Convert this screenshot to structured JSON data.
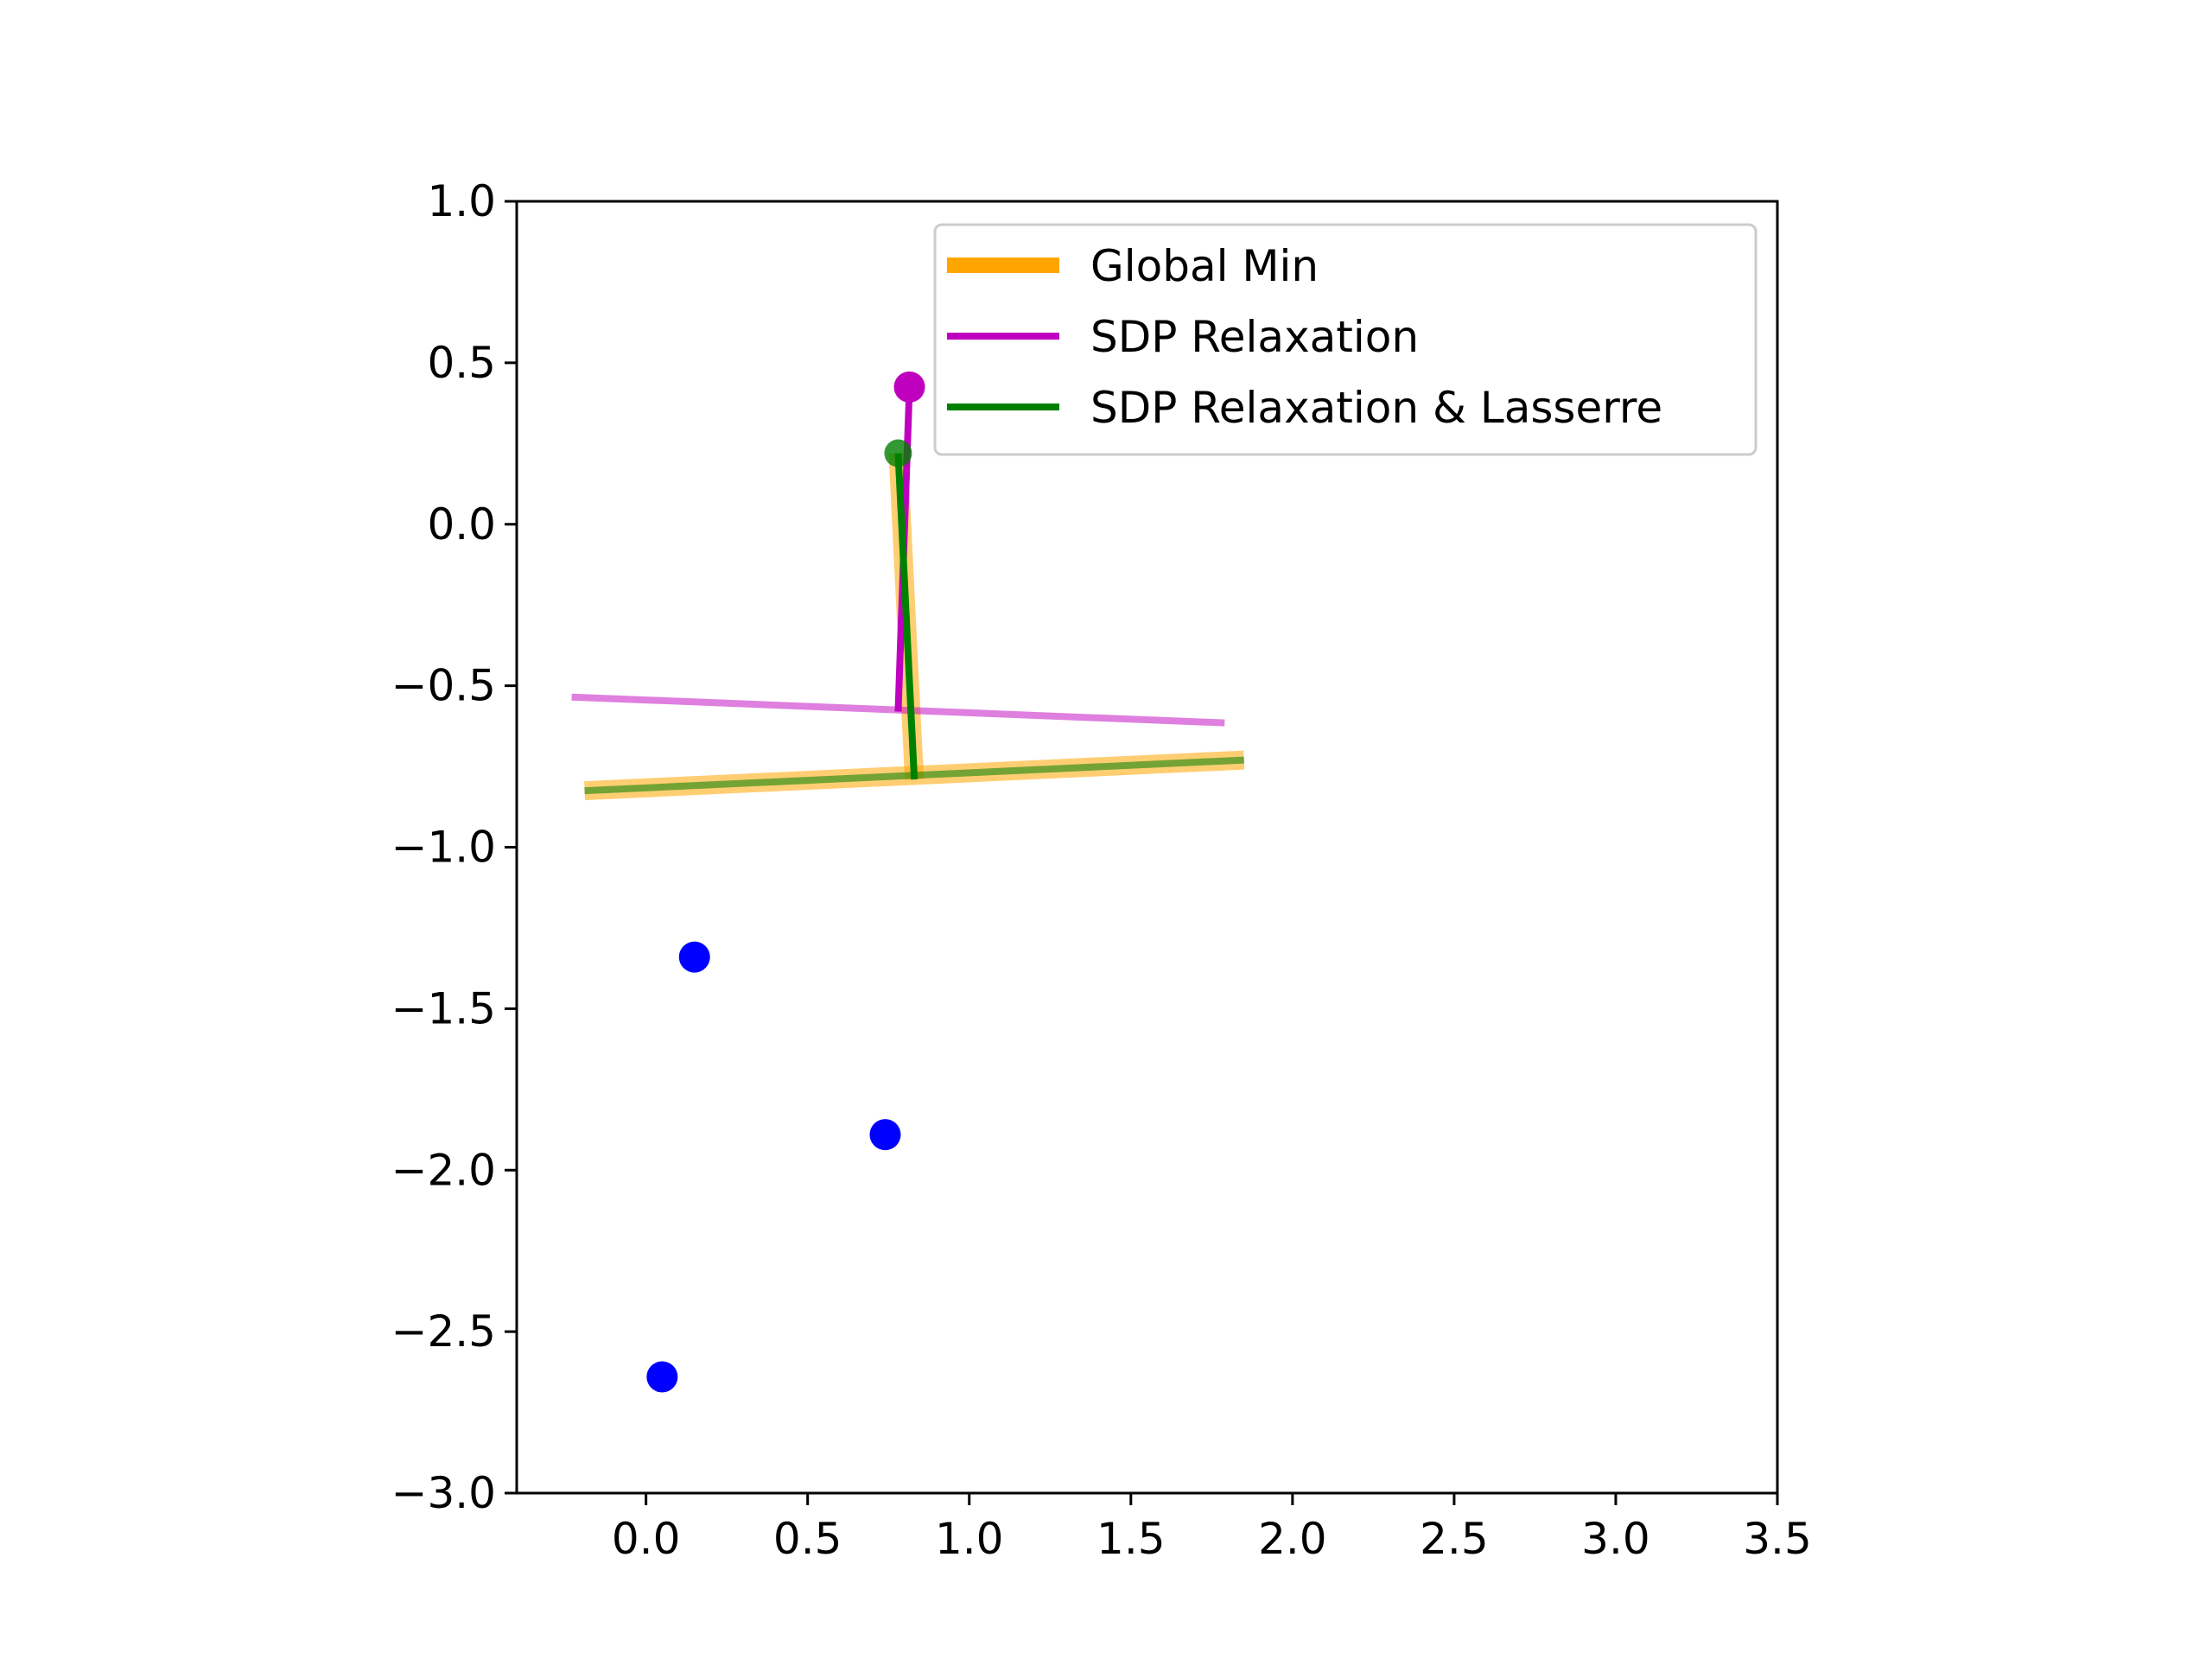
{
  "chart_data": {
    "type": "line",
    "xlim": [
      -0.4,
      3.5
    ],
    "ylim": [
      -3.0,
      1.0
    ],
    "x_ticks": [
      0.0,
      0.5,
      1.0,
      1.5,
      2.0,
      2.5,
      3.0,
      3.5
    ],
    "x_tick_labels": [
      "0.0",
      "0.5",
      "1.0",
      "1.5",
      "2.0",
      "2.5",
      "3.0",
      "3.5"
    ],
    "y_ticks": [
      1.0,
      0.5,
      0.0,
      -0.5,
      -1.0,
      -1.5,
      -2.0,
      -2.5,
      -3.0
    ],
    "y_tick_labels": [
      "1.0",
      "0.5",
      "0.0",
      "−0.5",
      "−1.0",
      "−1.5",
      "−2.0",
      "−2.5",
      "−3.0"
    ],
    "grid": false,
    "legend_position": "upper-right",
    "colors": {
      "global_min": "#ffa500",
      "sdp": "#bf00bf",
      "lasserre": "#008000",
      "points": "#0000ff"
    },
    "points": [
      {
        "x": 0.15,
        "y": -1.34
      },
      {
        "x": 0.74,
        "y": -1.89
      },
      {
        "x": 0.05,
        "y": -2.64
      }
    ],
    "series": [
      {
        "name": "Global Min",
        "color": "#ffa500",
        "segments": [
          {
            "x": [
              -0.19,
              1.85
            ],
            "y": [
              -0.825,
              -0.73
            ]
          },
          {
            "x": [
              0.78,
              0.83
            ],
            "y": [
              0.22,
              -0.79
            ]
          }
        ]
      },
      {
        "name": "SDP Relaxation",
        "color": "#bf00bf",
        "segments": [
          {
            "x": [
              -0.23,
              1.79
            ],
            "y": [
              -0.535,
              -0.615
            ]
          },
          {
            "x": [
              0.78,
              0.815
            ],
            "y": [
              -0.58,
              0.425
            ]
          }
        ],
        "marker": {
          "x": 0.815,
          "y": 0.425
        }
      },
      {
        "name": "SDP Relaxation & Lasserre",
        "color": "#008000",
        "segments": [
          {
            "x": [
              -0.19,
              1.85
            ],
            "y": [
              -0.825,
              -0.73
            ]
          },
          {
            "x": [
              0.78,
              0.83
            ],
            "y": [
              0.22,
              -0.79
            ]
          }
        ],
        "marker": {
          "x": 0.78,
          "y": 0.22
        }
      }
    ],
    "legend": [
      "Global Min",
      "SDP Relaxation",
      "SDP Relaxation & Lasserre"
    ]
  }
}
